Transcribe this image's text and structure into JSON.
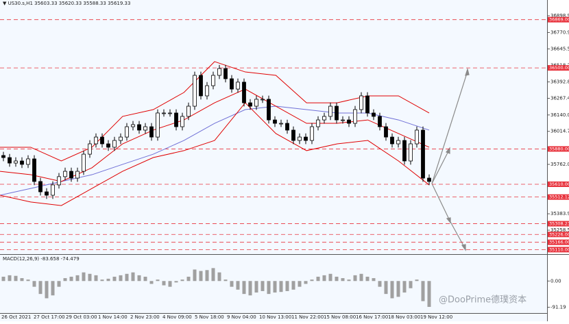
{
  "chart_data": {
    "type": "candlestick",
    "symbol": "US30.s,H1",
    "header_values": [
      35603.33,
      35620.33,
      35588.33,
      35619.33
    ],
    "ohlc": [
      [
        35830,
        35858,
        35786,
        35814
      ],
      [
        35814,
        35842,
        35744,
        35772
      ],
      [
        35772,
        35816,
        35744,
        35788
      ],
      [
        35788,
        35816,
        35734,
        35762
      ],
      [
        35762,
        35832,
        35734,
        35804
      ],
      [
        35804,
        35832,
        35603,
        35631
      ],
      [
        35631,
        35659,
        35524,
        35552
      ],
      [
        35552,
        35580,
        35498,
        35526
      ],
      [
        35526,
        35633,
        35498,
        35605
      ],
      [
        35605,
        35696,
        35577,
        35668
      ],
      [
        35668,
        35737,
        35640,
        35709
      ],
      [
        35709,
        35737,
        35629,
        35657
      ],
      [
        35657,
        35737,
        35629,
        35709
      ],
      [
        35709,
        35868,
        35681,
        35840
      ],
      [
        35840,
        35947,
        35812,
        35919
      ],
      [
        35919,
        35999,
        35891,
        35971
      ],
      [
        35971,
        35999,
        35891,
        35919
      ],
      [
        35919,
        35947,
        35865,
        35893
      ],
      [
        35893,
        35973,
        35865,
        35945
      ],
      [
        35945,
        35999,
        35917,
        35971
      ],
      [
        35971,
        36078,
        35943,
        36050
      ],
      [
        36050,
        36094,
        36022,
        36066
      ],
      [
        36066,
        36094,
        35996,
        36024
      ],
      [
        36024,
        36078,
        35996,
        36050
      ],
      [
        36050,
        36078,
        35943,
        35971
      ],
      [
        35971,
        36183,
        35943,
        36155
      ],
      [
        36155,
        36183,
        36127,
        36155
      ],
      [
        36155,
        36183,
        36127,
        36155
      ],
      [
        36155,
        36183,
        36022,
        36050
      ],
      [
        36050,
        36157,
        36022,
        36129
      ],
      [
        36129,
        36235,
        36101,
        36207
      ],
      [
        36207,
        36471,
        36179,
        36443
      ],
      [
        36443,
        36471,
        36258,
        36286
      ],
      [
        36286,
        36392,
        36258,
        36364
      ],
      [
        36364,
        36471,
        36336,
        36443
      ],
      [
        36443,
        36523,
        36415,
        36495
      ],
      [
        36495,
        36523,
        36389,
        36417
      ],
      [
        36417,
        36445,
        36310,
        36338
      ],
      [
        36338,
        36419,
        36310,
        36391
      ],
      [
        36391,
        36419,
        36205,
        36233
      ],
      [
        36233,
        36261,
        36179,
        36207
      ],
      [
        36207,
        36288,
        36179,
        36260
      ],
      [
        36260,
        36288,
        36232,
        36260
      ],
      [
        36260,
        36288,
        36074,
        36102
      ],
      [
        36102,
        36130,
        36048,
        36076
      ],
      [
        36076,
        36104,
        36048,
        36076
      ],
      [
        36076,
        36104,
        35996,
        36024
      ],
      [
        36024,
        36052,
        35917,
        35945
      ],
      [
        35945,
        35999,
        35917,
        35971
      ],
      [
        35971,
        35999,
        35917,
        35945
      ],
      [
        35945,
        36078,
        35917,
        36050
      ],
      [
        36050,
        36130,
        36022,
        36102
      ],
      [
        36102,
        36157,
        36074,
        36129
      ],
      [
        36129,
        36235,
        36101,
        36207
      ],
      [
        36207,
        36235,
        36074,
        36102
      ],
      [
        36102,
        36130,
        36074,
        36102
      ],
      [
        36102,
        36130,
        36048,
        36076
      ],
      [
        36076,
        36209,
        36048,
        36181
      ],
      [
        36181,
        36314,
        36153,
        36286
      ],
      [
        36286,
        36314,
        36127,
        36155
      ],
      [
        36155,
        36183,
        36101,
        36129
      ],
      [
        36129,
        36157,
        36022,
        36050
      ],
      [
        36050,
        36078,
        35943,
        35971
      ],
      [
        35971,
        35999,
        35891,
        35919
      ],
      [
        35919,
        35973,
        35891,
        35945
      ],
      [
        35945,
        35973,
        35760,
        35788
      ],
      [
        35788,
        35947,
        35760,
        35919
      ],
      [
        35919,
        36052,
        35891,
        36024
      ],
      [
        36024,
        36052,
        35629,
        35657
      ],
      [
        35657,
        35685,
        35603,
        35631
      ]
    ],
    "ylim": [
      35080.6,
      37019.4
    ],
    "yticks": [
      {
        "value": 36898.9,
        "label": "36898.90"
      },
      {
        "value": 36770.9,
        "label": "36770.90"
      },
      {
        "value": 36645.5,
        "label": "36645.50"
      },
      {
        "value": 36518.2,
        "label": "36518.20"
      },
      {
        "value": 36392.8,
        "label": "36392.80"
      },
      {
        "value": 36267.4,
        "label": "36267.40"
      },
      {
        "value": 36140,
        "label": "36140.00"
      },
      {
        "value": 36014.7,
        "label": "36014.70"
      },
      {
        "value": 35762,
        "label": "35762.00"
      },
      {
        "value": 35383.9,
        "label": "35383.90"
      },
      {
        "value": 35258.5,
        "label": "35258.50"
      }
    ],
    "levels": [
      {
        "value": 36869,
        "label": "36869.00"
      },
      {
        "value": 36500,
        "label": "36500.00"
      },
      {
        "value": 35880,
        "label": "35880.00"
      },
      {
        "value": 35610,
        "label": "35610.00"
      },
      {
        "value": 35512.12,
        "label": "35512.12"
      },
      {
        "value": 35308.23,
        "label": "35308.23"
      },
      {
        "value": 35226,
        "label": "35226.00"
      },
      {
        "value": 35166,
        "label": "35166.00"
      },
      {
        "value": 35110,
        "label": "35110.00"
      }
    ],
    "level_color": "#e8323c",
    "bands": {
      "color": "#e00000",
      "upper": [
        35893,
        35893,
        35788,
        35893,
        36129,
        36181,
        36312,
        36548,
        36469,
        36443,
        36233,
        36233,
        36286,
        36286,
        36155
      ],
      "middle": [
        35709,
        35683,
        35631,
        35736,
        35919,
        36024,
        36102,
        36233,
        36338,
        36207,
        36076,
        36076,
        36102,
        35998,
        35893
      ],
      "lower": [
        35526,
        35474,
        35447,
        35578,
        35709,
        35814,
        35867,
        35945,
        36233,
        35998,
        35867,
        35919,
        35945,
        35788,
        35605
      ]
    },
    "ma": {
      "color": "#6f6fd6",
      "values": [
        35526,
        35578,
        35631,
        35683,
        35762,
        35840,
        35945,
        36076,
        36181,
        36207,
        36181,
        36155,
        36155,
        36102,
        36024
      ]
    },
    "time_labels": [
      "26 Oct 2021",
      "27 Oct 17:00",
      "29 Oct 03:00",
      "1 Nov 14:00",
      "2 Nov 23:00",
      "4 Nov 09:00",
      "5 Nov 18:00",
      "9 Nov 04:00",
      "10 Nov 13:00",
      "11 Nov 22:00",
      "15 Nov 08:00",
      "16 Nov 17:00",
      "18 Nov 03:00",
      "19 Nov 12:00"
    ],
    "macd": {
      "label": "MACD(12,26,9) -83.658 -74.479",
      "color": "#a0a0a0",
      "values": [
        15,
        20,
        18,
        10,
        5,
        -20,
        -45,
        -60,
        -50,
        -20,
        10,
        15,
        20,
        30,
        25,
        20,
        5,
        8,
        15,
        20,
        25,
        30,
        20,
        15,
        -10,
        5,
        -15,
        -20,
        -5,
        5,
        15,
        40,
        35,
        38,
        45,
        30,
        5,
        -20,
        -30,
        -45,
        -50,
        -40,
        -35,
        -45,
        -40,
        -38,
        -35,
        -30,
        -20,
        -10,
        5,
        15,
        20,
        25,
        15,
        10,
        5,
        20,
        25,
        15,
        10,
        -20,
        -45,
        -60,
        -55,
        -40,
        -25,
        5,
        -70,
        -90
      ],
      "ylim": [
        -109,
        84
      ],
      "yticks": [
        {
          "value": 0,
          "label": "0.00"
        },
        {
          "value": -91.19,
          "label": "-91.19"
        }
      ]
    },
    "watermark": "@DooPrime德璞资本"
  }
}
